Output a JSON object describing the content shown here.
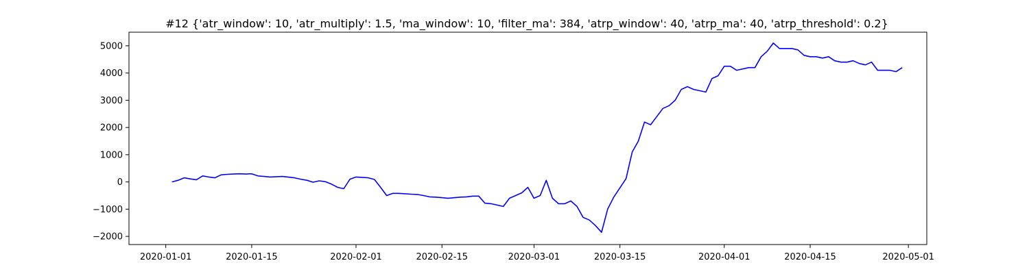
{
  "chart_data": {
    "type": "line",
    "title": "#12 {'atr_window': 10, 'atr_multiply': 1.5, 'ma_window': 10, 'filter_ma': 384, 'atrp_window': 40, 'atrp_ma': 40, 'atrp_threshold': 0.2}",
    "xlabel": "",
    "ylabel": "",
    "xlim": [
      "2019-12-26",
      "2020-05-04"
    ],
    "ylim": [
      -2300,
      5500
    ],
    "grid": false,
    "line_color": "#0000ff",
    "x_ticks": [
      "2020-01-01",
      "2020-01-15",
      "2020-02-01",
      "2020-02-15",
      "2020-03-01",
      "2020-03-15",
      "2020-04-01",
      "2020-04-15",
      "2020-05-01"
    ],
    "y_ticks": [
      -2000,
      -1000,
      0,
      1000,
      2000,
      3000,
      4000,
      5000
    ],
    "series": [
      {
        "x": [
          "2020-01-02",
          "2020-01-03",
          "2020-01-04",
          "2020-01-05",
          "2020-01-06",
          "2020-01-07",
          "2020-01-08",
          "2020-01-09",
          "2020-01-10",
          "2020-01-11",
          "2020-01-12",
          "2020-01-13",
          "2020-01-14",
          "2020-01-15",
          "2020-01-16",
          "2020-01-17",
          "2020-01-18",
          "2020-01-20",
          "2020-01-22",
          "2020-01-23",
          "2020-01-24",
          "2020-01-25",
          "2020-01-26",
          "2020-01-27",
          "2020-01-28",
          "2020-01-29",
          "2020-01-30",
          "2020-01-31",
          "2020-02-01",
          "2020-02-03",
          "2020-02-04",
          "2020-02-05",
          "2020-02-06",
          "2020-02-07",
          "2020-02-08",
          "2020-02-10",
          "2020-02-11",
          "2020-02-12",
          "2020-02-13",
          "2020-02-14",
          "2020-02-15",
          "2020-02-16",
          "2020-02-18",
          "2020-02-19",
          "2020-02-20",
          "2020-02-21",
          "2020-02-22",
          "2020-02-23",
          "2020-02-24",
          "2020-02-25",
          "2020-02-26",
          "2020-02-27",
          "2020-02-28",
          "2020-02-29",
          "2020-03-01",
          "2020-03-02",
          "2020-03-03",
          "2020-03-04",
          "2020-03-05",
          "2020-03-06",
          "2020-03-07",
          "2020-03-08",
          "2020-03-09",
          "2020-03-10",
          "2020-03-11",
          "2020-03-12",
          "2020-03-13",
          "2020-03-14",
          "2020-03-16",
          "2020-03-17",
          "2020-03-18",
          "2020-03-19",
          "2020-03-20",
          "2020-03-21",
          "2020-03-22",
          "2020-03-23",
          "2020-03-24",
          "2020-03-25",
          "2020-03-26",
          "2020-03-27",
          "2020-03-29",
          "2020-03-30",
          "2020-03-31",
          "2020-04-01",
          "2020-04-02",
          "2020-04-03",
          "2020-04-05",
          "2020-04-06",
          "2020-04-07",
          "2020-04-08",
          "2020-04-09",
          "2020-04-10",
          "2020-04-12",
          "2020-04-13",
          "2020-04-14",
          "2020-04-15",
          "2020-04-16",
          "2020-04-17",
          "2020-04-18",
          "2020-04-19",
          "2020-04-20",
          "2020-04-21",
          "2020-04-22",
          "2020-04-23",
          "2020-04-24",
          "2020-04-25",
          "2020-04-26",
          "2020-04-27",
          "2020-04-28",
          "2020-04-29",
          "2020-04-30"
        ],
        "y": [
          0,
          60,
          150,
          110,
          80,
          220,
          180,
          150,
          260,
          280,
          290,
          300,
          290,
          300,
          220,
          200,
          180,
          200,
          150,
          100,
          60,
          -10,
          40,
          10,
          -80,
          -200,
          -250,
          100,
          180,
          150,
          90,
          -200,
          -500,
          -420,
          -420,
          -450,
          -460,
          -500,
          -550,
          -560,
          -580,
          -600,
          -560,
          -550,
          -520,
          -520,
          -780,
          -800,
          -850,
          -900,
          -600,
          -500,
          -400,
          -200,
          -600,
          -500,
          60,
          -600,
          -800,
          -800,
          -700,
          -900,
          -1300,
          -1400,
          -1600,
          -1850,
          -1000,
          -560,
          120,
          1100,
          1500,
          2200,
          2100,
          2400,
          2700,
          2800,
          3000,
          3400,
          3500,
          3400,
          3300,
          3800,
          3900,
          4250,
          4250,
          4100,
          4200,
          4200,
          4600,
          4800,
          5100,
          4900,
          4900,
          4850,
          4650,
          4600,
          4600,
          4550,
          4600,
          4450,
          4400,
          4400,
          4450,
          4350,
          4300,
          4400,
          4100,
          4100,
          4100,
          4050,
          4200
        ]
      }
    ]
  }
}
